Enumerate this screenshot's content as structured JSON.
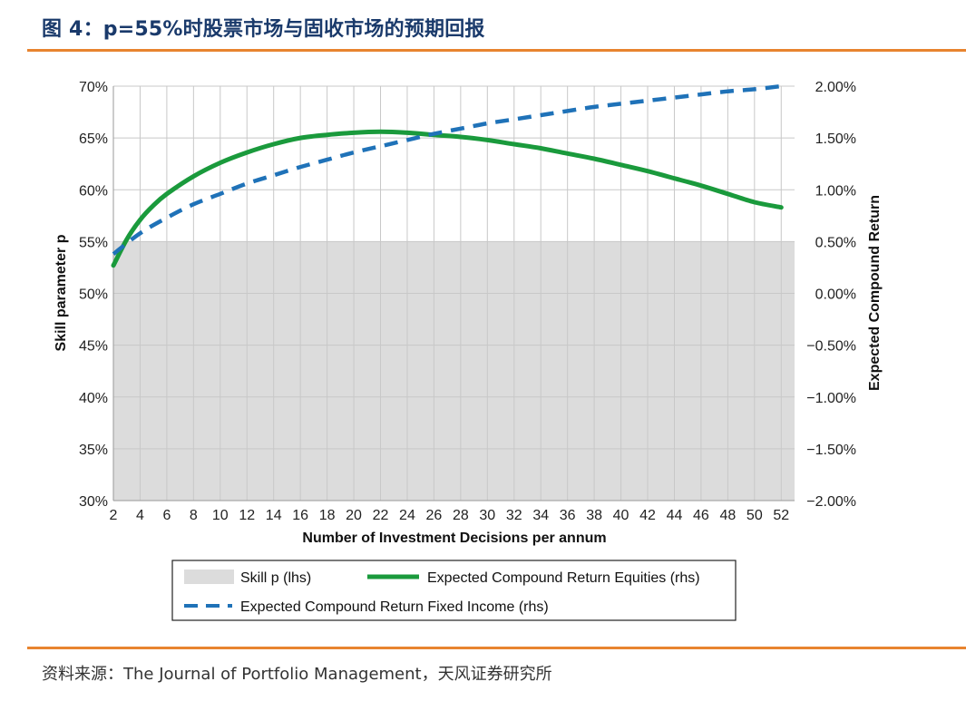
{
  "figure": {
    "title": "图 4：p=55%时股票市场与固收市场的预期回报",
    "source": "资料来源：The Journal of Portfolio Management，天风证券研究所"
  },
  "colors": {
    "accent_rule": "#e8842f",
    "title": "#1a3a6b",
    "skill_fill": "#dcdcdc",
    "equities": "#1a9a3c",
    "fixed_income": "#1f72b8"
  },
  "chart_data": {
    "type": "line",
    "xlabel": "Number of Investment Decisions per annum",
    "ylabel_left": "Skill parameter p",
    "ylabel_right": "Expected Compound Return",
    "x_ticks": [
      "2",
      "4",
      "6",
      "8",
      "10",
      "12",
      "14",
      "16",
      "18",
      "20",
      "22",
      "24",
      "26",
      "28",
      "30",
      "32",
      "34",
      "36",
      "38",
      "40",
      "42",
      "44",
      "46",
      "48",
      "50",
      "52"
    ],
    "xlim": [
      2,
      53
    ],
    "left_ticks": [
      "70%",
      "65%",
      "60%",
      "55%",
      "50%",
      "45%",
      "40%",
      "35%",
      "30%"
    ],
    "left_ylim": [
      0.3,
      0.7
    ],
    "right_ticks": [
      "2.00%",
      "1.50%",
      "1.00%",
      "0.50%",
      "0.00%",
      "−0.50%",
      "−1.00%",
      "−1.50%",
      "−2.00%"
    ],
    "right_ylim": [
      -0.02,
      0.02
    ],
    "grid": true,
    "skill": {
      "name": "Skill p (lhs)",
      "value": 0.55,
      "axis": "left",
      "style": "area"
    },
    "series": [
      {
        "name": "Expected Compound Return Equities (rhs)",
        "axis": "right",
        "style": "solid",
        "x": [
          2,
          3,
          4,
          5,
          6,
          8,
          10,
          12,
          14,
          16,
          18,
          20,
          22,
          24,
          26,
          28,
          30,
          32,
          34,
          36,
          38,
          40,
          42,
          44,
          46,
          48,
          50,
          52
        ],
        "values": [
          0.0027,
          0.0052,
          0.0071,
          0.0085,
          0.0096,
          0.0113,
          0.0126,
          0.0136,
          0.0144,
          0.015,
          0.0153,
          0.0155,
          0.0156,
          0.0155,
          0.0153,
          0.0151,
          0.0148,
          0.0144,
          0.014,
          0.0135,
          0.013,
          0.0124,
          0.0118,
          0.0111,
          0.0104,
          0.0096,
          0.0088,
          0.0083
        ]
      },
      {
        "name": "Expected Compound Return Fixed Income (rhs)",
        "axis": "right",
        "style": "dashed",
        "x": [
          2,
          4,
          6,
          8,
          10,
          12,
          14,
          16,
          18,
          20,
          22,
          24,
          26,
          28,
          30,
          32,
          34,
          36,
          38,
          40,
          42,
          44,
          46,
          48,
          50,
          52
        ],
        "values": [
          0.0038,
          0.0058,
          0.0073,
          0.0086,
          0.0096,
          0.0106,
          0.0114,
          0.0122,
          0.0129,
          0.0136,
          0.0142,
          0.0148,
          0.0154,
          0.0159,
          0.0164,
          0.0168,
          0.0172,
          0.0176,
          0.018,
          0.0183,
          0.0186,
          0.0189,
          0.0192,
          0.0195,
          0.0197,
          0.02
        ]
      }
    ]
  }
}
